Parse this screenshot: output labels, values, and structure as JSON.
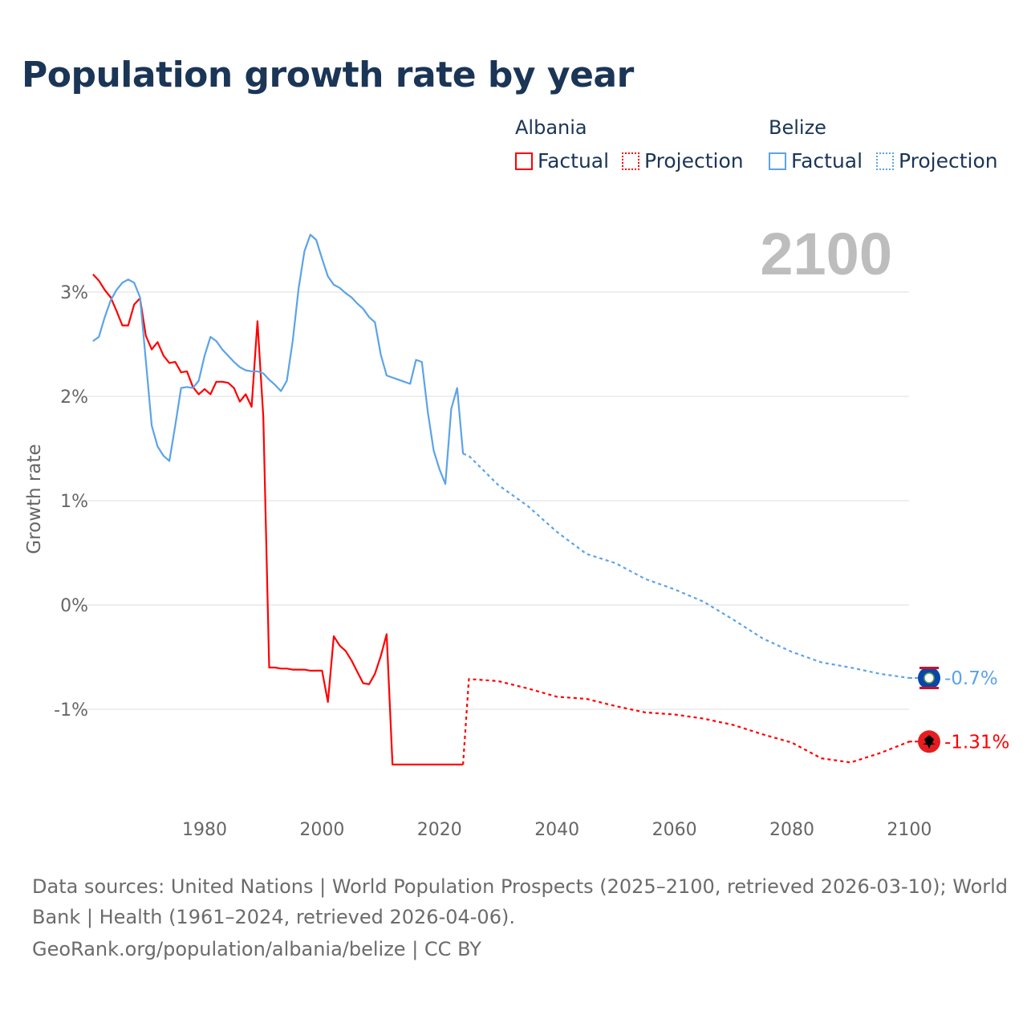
{
  "colors": {
    "albania": "#ff0000",
    "belize": "#5ba3e8",
    "title": "#1b3556",
    "grid": "#e8e8e8",
    "axis_text": "#666666",
    "year_watermark": "#bdbdbd"
  },
  "legend": {
    "albania": {
      "title": "Albania",
      "factual": "Factual",
      "projection": "Projection"
    },
    "belize": {
      "title": "Belize",
      "factual": "Factual",
      "projection": "Projection"
    }
  },
  "year_label": "2100",
  "end_labels": {
    "belize": "-0.7%",
    "albania": "-1.31%"
  },
  "footer": {
    "line1": "Data sources: United Nations | World Population Prospects (2025–2100, retrieved 2026-03-10); World",
    "line2": "Bank | Health (1961–2024, retrieved 2026-04-06).",
    "line3": "GeoRank.org/population/albania/belize | CC BY"
  },
  "chart_data": {
    "type": "line",
    "title": "Population growth rate by year",
    "xlabel": "",
    "ylabel": "Growth rate",
    "xlim": [
      1961,
      2100
    ],
    "ylim": [
      -1.9,
      3.7
    ],
    "x_ticks": [
      1980,
      2000,
      2020,
      2040,
      2060,
      2080,
      2100
    ],
    "x_tick_labels": [
      "1980",
      "2000",
      "2020",
      "2040",
      "2060",
      "2080",
      "2100"
    ],
    "y_ticks": [
      3,
      2,
      1,
      0,
      -1
    ],
    "y_tick_labels": [
      "3%",
      "2%",
      "1%",
      "0%",
      "-1%"
    ],
    "grid": true,
    "legend_position": "top-right",
    "series": [
      {
        "name": "Albania Factual",
        "country": "albania",
        "style": "solid",
        "x_start": 1961,
        "values": [
          3.17,
          3.11,
          3.02,
          2.95,
          2.82,
          2.68,
          2.68,
          2.88,
          2.94,
          2.58,
          2.45,
          2.52,
          2.39,
          2.32,
          2.33,
          2.23,
          2.24,
          2.09,
          2.02,
          2.07,
          2.02,
          2.14,
          2.14,
          2.13,
          2.08,
          1.95,
          2.02,
          1.9,
          2.72,
          1.8,
          -0.6,
          -0.6,
          -0.61,
          -0.61,
          -0.62,
          -0.62,
          -0.62,
          -0.63,
          -0.63,
          -0.63,
          -0.93,
          -0.3,
          -0.39,
          -0.44,
          -0.53,
          -0.64,
          -0.75,
          -0.76,
          -0.66,
          -0.49,
          -0.28,
          -1.53,
          -1.53,
          -1.53,
          -1.53,
          -1.53,
          -1.53,
          -1.53,
          -1.53,
          -1.53,
          -1.53,
          -1.53,
          -1.53,
          -1.53
        ]
      },
      {
        "name": "Albania Projection",
        "country": "albania",
        "style": "dotted",
        "x": [
          2024,
          2025,
          2030,
          2035,
          2040,
          2045,
          2050,
          2055,
          2060,
          2065,
          2070,
          2075,
          2080,
          2085,
          2090,
          2095,
          2100
        ],
        "values": [
          -1.53,
          -0.71,
          -0.73,
          -0.8,
          -0.88,
          -0.9,
          -0.97,
          -1.03,
          -1.05,
          -1.09,
          -1.15,
          -1.24,
          -1.32,
          -1.47,
          -1.51,
          -1.42,
          -1.31
        ]
      },
      {
        "name": "Belize Factual",
        "country": "belize",
        "style": "solid",
        "x_start": 1961,
        "values": [
          2.53,
          2.57,
          2.76,
          2.92,
          3.02,
          3.09,
          3.12,
          3.09,
          2.95,
          2.34,
          1.72,
          1.52,
          1.43,
          1.38,
          1.72,
          2.08,
          2.09,
          2.08,
          2.15,
          2.39,
          2.57,
          2.53,
          2.45,
          2.39,
          2.33,
          2.28,
          2.25,
          2.24,
          2.24,
          2.22,
          2.16,
          2.11,
          2.05,
          2.15,
          2.53,
          3.03,
          3.39,
          3.55,
          3.5,
          3.32,
          3.15,
          3.07,
          3.04,
          2.99,
          2.95,
          2.89,
          2.84,
          2.76,
          2.71,
          2.4,
          2.2,
          2.18,
          2.16,
          2.14,
          2.12,
          2.35,
          2.33,
          1.85,
          1.48,
          1.3,
          1.16,
          1.88,
          2.08,
          1.45
        ]
      },
      {
        "name": "Belize Projection",
        "country": "belize",
        "style": "dotted",
        "x": [
          2024,
          2025,
          2030,
          2035,
          2040,
          2045,
          2050,
          2055,
          2060,
          2065,
          2070,
          2075,
          2080,
          2085,
          2090,
          2095,
          2100
        ],
        "values": [
          1.45,
          1.43,
          1.15,
          0.95,
          0.7,
          0.49,
          0.4,
          0.25,
          0.15,
          0.03,
          -0.14,
          -0.32,
          -0.45,
          -0.55,
          -0.6,
          -0.66,
          -0.7
        ]
      }
    ]
  }
}
